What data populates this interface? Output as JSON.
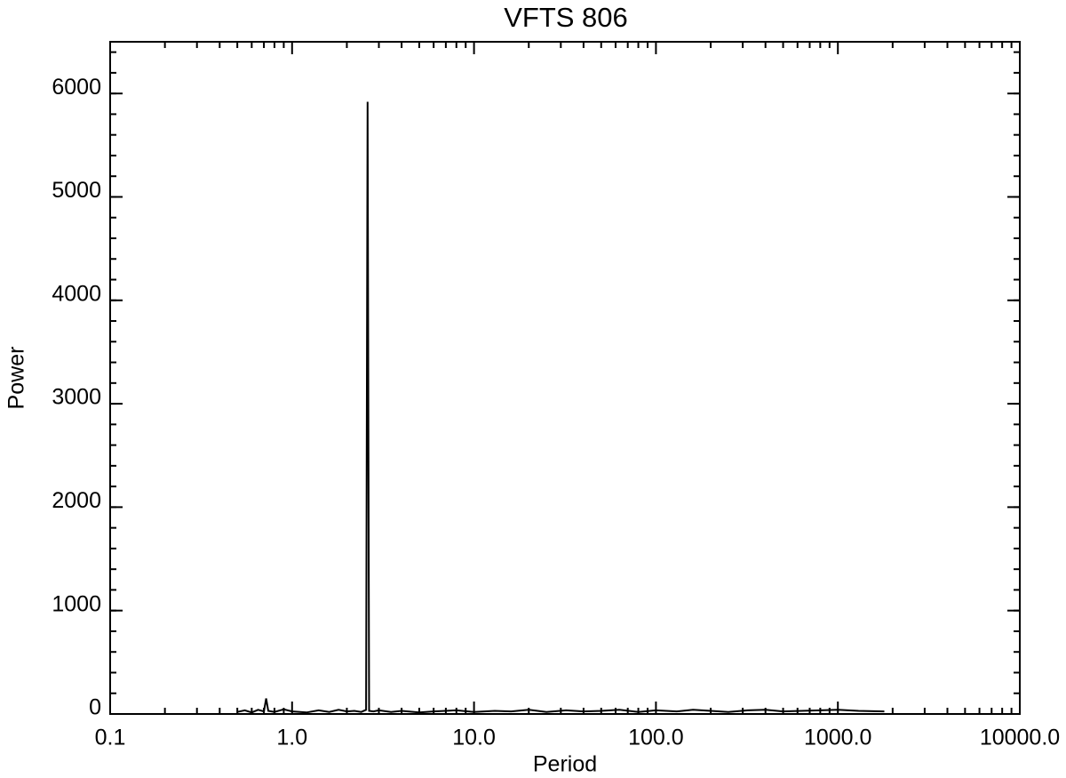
{
  "chart_data": {
    "type": "line",
    "title": "VFTS 806",
    "x_label": "Period",
    "y_label": "Power",
    "x_scale": "log",
    "x": [
      0.5,
      0.55,
      0.6,
      0.65,
      0.7,
      0.72,
      0.74,
      0.8,
      0.9,
      1.0,
      1.2,
      1.4,
      1.6,
      1.8,
      2.0,
      2.2,
      2.4,
      2.55,
      2.6,
      2.65,
      2.8,
      3.0,
      3.5,
      4,
      5,
      6,
      8,
      10,
      13,
      16,
      20,
      25,
      32,
      40,
      50,
      63,
      80,
      100,
      130,
      160,
      200,
      250,
      320,
      400,
      500,
      630,
      800,
      1000,
      1300,
      1800
    ],
    "series": [
      {
        "name": "Power",
        "color": "#000000",
        "values": [
          20,
          35,
          15,
          40,
          25,
          150,
          30,
          20,
          45,
          25,
          15,
          35,
          20,
          40,
          25,
          30,
          20,
          40,
          5920,
          30,
          25,
          35,
          20,
          30,
          15,
          25,
          35,
          20,
          30,
          25,
          40,
          20,
          35,
          25,
          30,
          40,
          20,
          35,
          25,
          40,
          30,
          20,
          35,
          40,
          25,
          30,
          35,
          40,
          30,
          25
        ]
      }
    ],
    "xlim": [
      0.1,
      10000
    ],
    "xticks": [
      0.1,
      {
        "value": 1,
        "label": "1.0"
      },
      {
        "value": 10,
        "label": "10.0"
      },
      {
        "value": 100,
        "label": "100.0"
      },
      {
        "value": 1000,
        "label": "1000.0"
      },
      {
        "value": 10000,
        "label": "10000.0"
      }
    ],
    "ylim": [
      0,
      6500
    ],
    "yticks": [
      0,
      1000,
      2000,
      3000,
      4000,
      5000,
      6000
    ]
  }
}
